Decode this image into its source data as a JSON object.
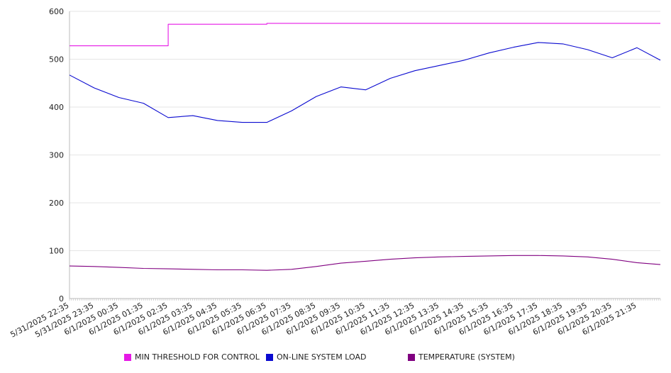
{
  "chart_data": {
    "type": "line",
    "title": "",
    "xlabel": "",
    "ylabel": "",
    "ylim": [
      0,
      600
    ],
    "y_ticks": [
      0,
      100,
      200,
      300,
      400,
      500,
      600
    ],
    "grid": "horizontal",
    "legend_position": "bottom",
    "x_tick_labels": [
      "5/31/2025 22:35",
      "5/31/2025 23:35",
      "6/1/2025 00:35",
      "6/1/2025 01:35",
      "6/1/2025 02:35",
      "6/1/2025 03:35",
      "6/1/2025 04:35",
      "6/1/2025 05:35",
      "6/1/2025 06:35",
      "6/1/2025 07:35",
      "6/1/2025 08:35",
      "6/1/2025 09:35",
      "6/1/2025 10:35",
      "6/1/2025 11:35",
      "6/1/2025 12:35",
      "6/1/2025 13:35",
      "6/1/2025 14:35",
      "6/1/2025 15:35",
      "6/1/2025 16:35",
      "6/1/2025 17:35",
      "6/1/2025 18:35",
      "6/1/2025 19:35",
      "6/1/2025 20:35",
      "6/1/2025 21:35"
    ],
    "x_hours": [
      0,
      1,
      2,
      3,
      4,
      5,
      6,
      7,
      8,
      9,
      10,
      11,
      12,
      13,
      14,
      15,
      16,
      17,
      18,
      19,
      20,
      21,
      22,
      23,
      23.95
    ],
    "series": [
      {
        "name": "MIN THRESHOLD FOR CONTROL",
        "color": "#e619e6",
        "values": [
          528,
          528,
          528,
          528,
          573,
          573,
          573,
          573,
          575,
          575,
          575,
          575,
          575,
          575,
          575,
          575,
          575,
          575,
          575,
          575,
          575,
          575,
          575,
          575,
          575
        ]
      },
      {
        "name": "ON-LINE SYSTEM LOAD",
        "color": "#0a0ad0",
        "values": [
          467,
          440,
          420,
          408,
          378,
          382,
          372,
          368,
          368,
          392,
          422,
          442,
          436,
          460,
          476,
          487,
          498,
          513,
          525,
          535,
          532,
          520,
          503,
          524,
          498
        ]
      },
      {
        "name": "TEMPERATURE (SYSTEM)",
        "color": "#800080",
        "values": [
          68,
          67,
          65,
          63,
          62,
          61,
          60,
          60,
          59,
          61,
          67,
          74,
          78,
          82,
          85,
          87,
          88,
          89,
          90,
          90,
          89,
          87,
          82,
          75,
          71
        ]
      }
    ]
  }
}
